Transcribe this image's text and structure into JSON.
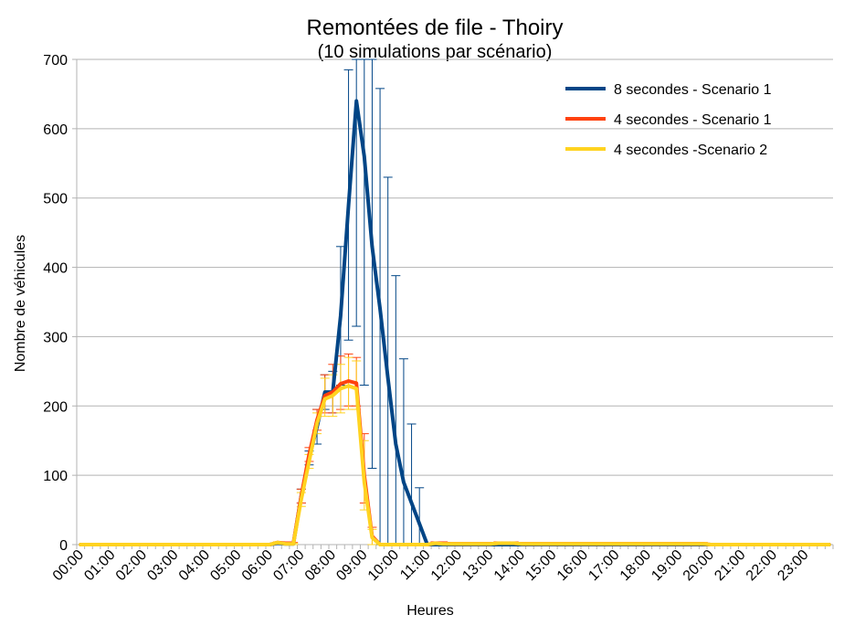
{
  "chart_data": {
    "type": "line",
    "title": "Remontées de file - Thoiry",
    "subtitle": "(10 simulations par scénario)",
    "xlabel": "Heures",
    "ylabel": "Nombre de véhicules",
    "ylim": [
      0,
      700
    ],
    "yticks": [
      "0",
      "100",
      "200",
      "300",
      "400",
      "500",
      "600",
      "700"
    ],
    "x_tick_labels": [
      "00:00",
      "01:00",
      "02:00",
      "03:00",
      "04:00",
      "05:00",
      "06:00",
      "07:00",
      "08:00",
      "09:00",
      "10:00",
      "11:00",
      "12:00",
      "13:00",
      "14:00",
      "15:00",
      "16:00",
      "17:00",
      "18:00",
      "19:00",
      "20:00",
      "21:00",
      "22:00",
      "23:00"
    ],
    "x": [
      "00:00",
      "00:15",
      "00:30",
      "00:45",
      "01:00",
      "01:15",
      "01:30",
      "01:45",
      "02:00",
      "02:15",
      "02:30",
      "02:45",
      "03:00",
      "03:15",
      "03:30",
      "03:45",
      "04:00",
      "04:15",
      "04:30",
      "04:45",
      "05:00",
      "05:15",
      "05:30",
      "05:45",
      "06:00",
      "06:15",
      "06:30",
      "06:45",
      "07:00",
      "07:15",
      "07:30",
      "07:45",
      "08:00",
      "08:15",
      "08:30",
      "08:45",
      "09:00",
      "09:15",
      "09:30",
      "09:45",
      "10:00",
      "10:15",
      "10:30",
      "10:45",
      "11:00",
      "11:15",
      "11:30",
      "11:45",
      "12:00",
      "12:15",
      "12:30",
      "12:45",
      "13:00",
      "13:15",
      "13:30",
      "13:45",
      "14:00",
      "14:15",
      "14:30",
      "14:45",
      "15:00",
      "15:15",
      "15:30",
      "15:45",
      "16:00",
      "16:15",
      "16:30",
      "16:45",
      "17:00",
      "17:15",
      "17:30",
      "17:45",
      "18:00",
      "18:15",
      "18:30",
      "18:45",
      "19:00",
      "19:15",
      "19:30",
      "19:45",
      "20:00",
      "20:15",
      "20:30",
      "20:45",
      "21:00",
      "21:15",
      "21:30",
      "21:45",
      "22:00",
      "22:15",
      "22:30",
      "22:45",
      "23:00",
      "23:15",
      "23:30",
      "23:45"
    ],
    "grid": true,
    "legend_position": "top-right",
    "series": [
      {
        "name": "8 secondes - Scenario 1",
        "color": "#004586",
        "values": [
          0,
          0,
          0,
          0,
          0,
          0,
          0,
          0,
          0,
          0,
          0,
          0,
          0,
          0,
          0,
          0,
          0,
          0,
          0,
          0,
          0,
          0,
          0,
          0,
          0,
          2,
          1,
          1,
          70,
          125,
          170,
          220,
          220,
          330,
          490,
          640,
          560,
          430,
          340,
          240,
          145,
          90,
          60,
          30,
          0,
          0,
          0,
          0,
          0,
          0,
          0,
          0,
          0,
          0,
          0,
          0,
          0,
          0,
          0,
          0,
          0,
          0,
          0,
          0,
          0,
          0,
          0,
          0,
          0,
          0,
          0,
          0,
          0,
          0,
          0,
          0,
          0,
          0,
          0,
          0,
          0,
          0,
          0,
          0,
          0,
          0,
          0,
          0,
          0,
          0,
          0,
          0,
          0,
          0,
          0,
          0
        ],
        "err_high": [
          0,
          0,
          0,
          0,
          0,
          0,
          0,
          0,
          0,
          0,
          0,
          0,
          0,
          0,
          0,
          0,
          0,
          0,
          0,
          0,
          0,
          0,
          0,
          0,
          0,
          0,
          0,
          0,
          80,
          135,
          195,
          245,
          250,
          430,
          685,
          700,
          700,
          700,
          658,
          530,
          388,
          268,
          174,
          82,
          0,
          0,
          0,
          0,
          0,
          0,
          0,
          0,
          0,
          0,
          0,
          0,
          0,
          0,
          0,
          0,
          0,
          0,
          0,
          0,
          0,
          0,
          0,
          0,
          0,
          0,
          0,
          0,
          0,
          0,
          0,
          0,
          0,
          0,
          0,
          0,
          0,
          0,
          0,
          0,
          0,
          0,
          0,
          0,
          0,
          0,
          0,
          0,
          0,
          0,
          0,
          0
        ],
        "err_low": [
          0,
          0,
          0,
          0,
          0,
          0,
          0,
          0,
          0,
          0,
          0,
          0,
          0,
          0,
          0,
          0,
          0,
          0,
          0,
          0,
          0,
          0,
          0,
          0,
          0,
          0,
          0,
          0,
          60,
          115,
          145,
          195,
          190,
          230,
          295,
          315,
          230,
          110,
          0,
          0,
          0,
          0,
          0,
          0,
          0,
          0,
          0,
          0,
          0,
          0,
          0,
          0,
          0,
          0,
          0,
          0,
          0,
          0,
          0,
          0,
          0,
          0,
          0,
          0,
          0,
          0,
          0,
          0,
          0,
          0,
          0,
          0,
          0,
          0,
          0,
          0,
          0,
          0,
          0,
          0,
          0,
          0,
          0,
          0,
          0,
          0,
          0,
          0,
          0,
          0,
          0,
          0,
          0,
          0,
          0,
          0
        ]
      },
      {
        "name": "4 secondes - Scenario 1",
        "color": "#ff420e",
        "values": [
          0,
          0,
          0,
          0,
          0,
          0,
          0,
          0,
          0,
          0,
          0,
          0,
          0,
          0,
          0,
          0,
          0,
          0,
          0,
          0,
          0,
          0,
          0,
          0,
          0,
          3,
          2,
          2,
          70,
          130,
          180,
          215,
          220,
          232,
          236,
          233,
          100,
          12,
          0,
          0,
          0,
          0,
          0,
          0,
          0,
          2,
          2,
          1,
          1,
          1,
          1,
          1,
          1,
          2,
          2,
          2,
          1,
          1,
          1,
          1,
          1,
          1,
          1,
          1,
          1,
          1,
          1,
          1,
          1,
          1,
          1,
          1,
          1,
          1,
          1,
          1,
          1,
          1,
          1,
          1,
          0,
          0,
          0,
          0,
          0,
          0,
          0,
          0,
          0,
          0,
          0,
          0,
          0,
          0,
          0,
          0
        ],
        "err_high": [
          0,
          0,
          0,
          0,
          0,
          0,
          0,
          0,
          0,
          0,
          0,
          0,
          0,
          0,
          0,
          0,
          0,
          0,
          0,
          0,
          0,
          0,
          0,
          0,
          0,
          4,
          3,
          3,
          80,
          140,
          195,
          245,
          260,
          272,
          275,
          270,
          160,
          25,
          0,
          0,
          0,
          0,
          0,
          0,
          0,
          4,
          4,
          3,
          3,
          3,
          3,
          3,
          3,
          4,
          4,
          4,
          3,
          3,
          3,
          3,
          3,
          3,
          3,
          3,
          3,
          3,
          3,
          3,
          3,
          3,
          3,
          3,
          3,
          3,
          3,
          3,
          3,
          3,
          3,
          3,
          0,
          0,
          0,
          0,
          0,
          0,
          0,
          0,
          0,
          0,
          0,
          0,
          0,
          0,
          0,
          0
        ],
        "err_low": [
          0,
          0,
          0,
          0,
          0,
          0,
          0,
          0,
          0,
          0,
          0,
          0,
          0,
          0,
          0,
          0,
          0,
          0,
          0,
          0,
          0,
          0,
          0,
          0,
          0,
          0,
          0,
          0,
          60,
          120,
          165,
          190,
          190,
          195,
          200,
          200,
          60,
          0,
          0,
          0,
          0,
          0,
          0,
          0,
          0,
          0,
          0,
          0,
          0,
          0,
          0,
          0,
          0,
          0,
          0,
          0,
          0,
          0,
          0,
          0,
          0,
          0,
          0,
          0,
          0,
          0,
          0,
          0,
          0,
          0,
          0,
          0,
          0,
          0,
          0,
          0,
          0,
          0,
          0,
          0,
          0,
          0,
          0,
          0,
          0,
          0,
          0,
          0,
          0,
          0,
          0,
          0,
          0,
          0,
          0,
          0
        ]
      },
      {
        "name": "4 secondes -Scenario 2",
        "color": "#ffd320",
        "values": [
          0,
          0,
          0,
          0,
          0,
          0,
          0,
          0,
          0,
          0,
          0,
          0,
          0,
          0,
          0,
          0,
          0,
          0,
          0,
          0,
          0,
          0,
          0,
          0,
          0,
          3,
          1,
          1,
          65,
          120,
          175,
          210,
          215,
          225,
          229,
          225,
          90,
          10,
          0,
          0,
          0,
          0,
          0,
          0,
          0,
          2,
          1,
          1,
          1,
          1,
          1,
          1,
          1,
          2,
          2,
          2,
          1,
          1,
          1,
          1,
          1,
          1,
          1,
          1,
          1,
          1,
          1,
          1,
          1,
          1,
          1,
          1,
          1,
          1,
          1,
          1,
          1,
          1,
          1,
          1,
          0,
          0,
          0,
          0,
          0,
          0,
          0,
          0,
          0,
          0,
          0,
          0,
          0,
          0,
          0,
          0
        ],
        "err_high": [
          0,
          0,
          0,
          0,
          0,
          0,
          0,
          0,
          0,
          0,
          0,
          0,
          0,
          0,
          0,
          0,
          0,
          0,
          0,
          0,
          0,
          0,
          0,
          0,
          0,
          4,
          2,
          2,
          75,
          130,
          190,
          240,
          245,
          260,
          270,
          265,
          150,
          22,
          0,
          0,
          0,
          0,
          0,
          0,
          0,
          3,
          3,
          3,
          3,
          3,
          3,
          3,
          3,
          3,
          3,
          3,
          3,
          3,
          3,
          3,
          3,
          3,
          3,
          3,
          3,
          3,
          3,
          3,
          3,
          3,
          3,
          3,
          3,
          3,
          3,
          3,
          3,
          3,
          3,
          3,
          0,
          0,
          0,
          0,
          0,
          0,
          0,
          0,
          0,
          0,
          0,
          0,
          0,
          0,
          0,
          0
        ],
        "err_low": [
          0,
          0,
          0,
          0,
          0,
          0,
          0,
          0,
          0,
          0,
          0,
          0,
          0,
          0,
          0,
          0,
          0,
          0,
          0,
          0,
          0,
          0,
          0,
          0,
          0,
          0,
          0,
          0,
          55,
          110,
          160,
          185,
          185,
          190,
          195,
          195,
          50,
          0,
          0,
          0,
          0,
          0,
          0,
          0,
          0,
          0,
          0,
          0,
          0,
          0,
          0,
          0,
          0,
          0,
          0,
          0,
          0,
          0,
          0,
          0,
          0,
          0,
          0,
          0,
          0,
          0,
          0,
          0,
          0,
          0,
          0,
          0,
          0,
          0,
          0,
          0,
          0,
          0,
          0,
          0,
          0,
          0,
          0,
          0,
          0,
          0,
          0,
          0,
          0,
          0,
          0,
          0,
          0,
          0,
          0,
          0
        ]
      }
    ]
  }
}
